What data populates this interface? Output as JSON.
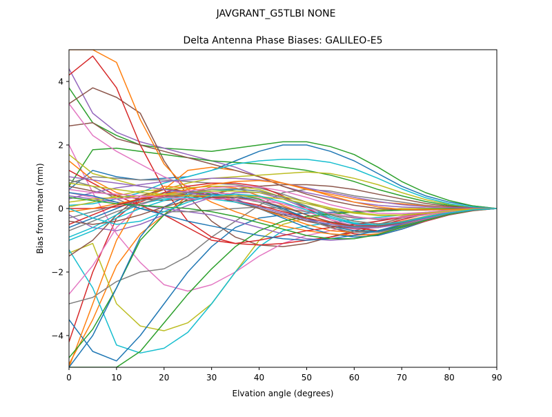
{
  "figure": {
    "suptitle": "JAVGRANT_G5TLBI NONE"
  },
  "chart_data": {
    "type": "line",
    "title": "Delta Antenna Phase Biases: GALILEO-E5",
    "xlabel": "Elvation angle (degrees)",
    "ylabel": "Bias from mean (mm)",
    "xlim": [
      0,
      90
    ],
    "ylim": [
      -5,
      5
    ],
    "xticks": [
      0,
      10,
      20,
      30,
      40,
      50,
      60,
      70,
      80,
      90
    ],
    "yticks": [
      -4,
      -2,
      0,
      2,
      4
    ],
    "grid": false,
    "legend": "none",
    "x": [
      0,
      5,
      10,
      15,
      20,
      25,
      30,
      35,
      40,
      45,
      50,
      55,
      60,
      65,
      70,
      75,
      80,
      85,
      90
    ],
    "series": [
      {
        "color": "#1f77b4",
        "values": [
          0.6,
          1.2,
          1.0,
          0.9,
          0.95,
          1.0,
          1.2,
          1.5,
          1.8,
          2.0,
          2.0,
          1.8,
          1.5,
          1.1,
          0.7,
          0.4,
          0.2,
          0.08,
          0.0
        ]
      },
      {
        "color": "#ff7f0e",
        "values": [
          -4.9,
          -3.5,
          -1.8,
          -0.8,
          -0.2,
          0.4,
          0.7,
          0.65,
          0.4,
          0.1,
          -0.2,
          -0.45,
          -0.6,
          -0.55,
          -0.4,
          -0.25,
          -0.12,
          -0.05,
          0.0
        ]
      },
      {
        "color": "#2ca02c",
        "values": [
          3.8,
          2.7,
          2.3,
          2.0,
          1.9,
          1.85,
          1.8,
          1.9,
          2.0,
          2.1,
          2.1,
          1.95,
          1.7,
          1.3,
          0.85,
          0.5,
          0.25,
          0.08,
          0.0
        ]
      },
      {
        "color": "#d62728",
        "values": [
          -4.2,
          -2.0,
          -0.3,
          0.3,
          0.4,
          0.45,
          0.5,
          0.45,
          0.3,
          0.0,
          -0.35,
          -0.6,
          -0.8,
          -0.85,
          -0.65,
          -0.4,
          -0.2,
          -0.07,
          0.0
        ]
      },
      {
        "color": "#9467bd",
        "values": [
          4.4,
          3.0,
          2.4,
          2.1,
          1.9,
          1.7,
          1.5,
          1.3,
          1.0,
          0.7,
          0.5,
          0.35,
          0.2,
          0.1,
          0.05,
          0.02,
          0.01,
          0.0,
          0.0
        ]
      },
      {
        "color": "#8c564b",
        "values": [
          3.3,
          3.8,
          3.5,
          3.0,
          1.5,
          0.4,
          -0.4,
          -0.9,
          -1.15,
          -1.2,
          -1.1,
          -0.9,
          -0.7,
          -0.5,
          -0.3,
          -0.15,
          -0.07,
          -0.02,
          0.0
        ]
      },
      {
        "color": "#e377c2",
        "values": [
          2.0,
          0.5,
          -0.8,
          -1.7,
          -2.4,
          -2.6,
          -2.4,
          -2.0,
          -1.5,
          -1.1,
          -0.85,
          -0.7,
          -0.55,
          -0.4,
          -0.25,
          -0.12,
          -0.05,
          -0.02,
          0.0
        ]
      },
      {
        "color": "#7f7f7f",
        "values": [
          -3.0,
          -2.8,
          -2.3,
          -2.0,
          -1.9,
          -1.5,
          -0.9,
          -0.4,
          0.1,
          0.5,
          0.6,
          0.55,
          0.4,
          0.3,
          0.2,
          0.1,
          0.05,
          0.02,
          0.0
        ]
      },
      {
        "color": "#bcbd22",
        "values": [
          -1.4,
          -1.1,
          -3.0,
          -3.7,
          -3.85,
          -3.6,
          -3.0,
          -2.0,
          -1.0,
          -0.5,
          -0.3,
          -0.2,
          -0.1,
          -0.05,
          0.0,
          0.0,
          0.0,
          0.0,
          0.0
        ]
      },
      {
        "color": "#17becf",
        "values": [
          -1.3,
          -2.5,
          -4.3,
          -4.55,
          -4.4,
          -3.9,
          -3.0,
          -2.0,
          -1.2,
          -0.7,
          -0.55,
          -0.45,
          -0.35,
          -0.28,
          -0.2,
          -0.12,
          -0.06,
          -0.02,
          0.0
        ]
      },
      {
        "color": "#1f77b4",
        "values": [
          -3.5,
          -4.5,
          -4.8,
          -4.0,
          -3.0,
          -2.0,
          -1.2,
          -0.6,
          -0.3,
          -0.2,
          -0.15,
          -0.12,
          -0.1,
          -0.08,
          -0.05,
          -0.03,
          -0.01,
          0.0,
          0.0
        ]
      },
      {
        "color": "#ff7f0e",
        "values": [
          1.5,
          0.9,
          0.5,
          0.3,
          0.6,
          1.2,
          1.3,
          1.2,
          1.0,
          0.8,
          0.6,
          0.45,
          0.3,
          0.2,
          0.15,
          0.08,
          0.04,
          0.01,
          0.0
        ]
      },
      {
        "color": "#2ca02c",
        "values": [
          0.7,
          1.85,
          1.9,
          1.8,
          1.7,
          1.6,
          1.5,
          1.45,
          1.4,
          1.3,
          1.2,
          1.05,
          0.85,
          0.6,
          0.4,
          0.22,
          0.1,
          0.03,
          0.0
        ]
      },
      {
        "color": "#d62728",
        "values": [
          4.2,
          4.8,
          3.8,
          2.0,
          0.6,
          -0.4,
          -0.9,
          -1.1,
          -1.15,
          -1.1,
          -1.0,
          -0.9,
          -0.75,
          -0.55,
          -0.35,
          -0.18,
          -0.08,
          -0.02,
          0.0
        ]
      },
      {
        "color": "#9467bd",
        "values": [
          -0.2,
          -0.6,
          -0.7,
          -0.5,
          -0.2,
          0.1,
          0.35,
          0.5,
          0.5,
          0.3,
          0.0,
          -0.3,
          -0.5,
          -0.55,
          -0.45,
          -0.3,
          -0.15,
          -0.05,
          0.0
        ]
      },
      {
        "color": "#8c564b",
        "values": [
          2.6,
          2.7,
          2.2,
          2.0,
          1.8,
          1.6,
          1.4,
          1.2,
          1.0,
          0.7,
          0.45,
          0.25,
          0.1,
          0.0,
          -0.05,
          -0.05,
          -0.03,
          -0.01,
          0.0
        ]
      },
      {
        "color": "#e377c2",
        "values": [
          3.3,
          2.3,
          1.8,
          1.4,
          1.0,
          0.7,
          0.4,
          0.2,
          0.0,
          -0.2,
          -0.4,
          -0.55,
          -0.65,
          -0.6,
          -0.45,
          -0.28,
          -0.13,
          -0.04,
          0.0
        ]
      },
      {
        "color": "#7f7f7f",
        "values": [
          0.8,
          1.0,
          0.95,
          0.9,
          0.9,
          0.85,
          0.8,
          0.75,
          0.65,
          0.45,
          0.2,
          -0.05,
          -0.25,
          -0.35,
          -0.3,
          -0.2,
          -0.1,
          -0.03,
          0.0
        ]
      },
      {
        "color": "#bcbd22",
        "values": [
          1.7,
          1.1,
          0.9,
          0.7,
          0.6,
          0.8,
          0.95,
          1.0,
          1.05,
          1.1,
          1.15,
          1.1,
          0.95,
          0.75,
          0.5,
          0.28,
          0.13,
          0.04,
          0.0
        ]
      },
      {
        "color": "#17becf",
        "values": [
          0.1,
          0.15,
          0.3,
          0.5,
          0.8,
          1.0,
          1.2,
          1.4,
          1.5,
          1.55,
          1.55,
          1.45,
          1.25,
          0.95,
          0.62,
          0.34,
          0.15,
          0.05,
          0.0
        ]
      },
      {
        "color": "#1f77b4",
        "values": [
          -0.6,
          -0.3,
          0.0,
          0.3,
          0.5,
          0.55,
          0.5,
          0.3,
          0.0,
          -0.3,
          -0.6,
          -0.8,
          -0.9,
          -0.85,
          -0.65,
          -0.4,
          -0.2,
          -0.06,
          0.0
        ]
      },
      {
        "color": "#ff7f0e",
        "values": [
          -5.0,
          -3.0,
          -1.0,
          0.3,
          0.7,
          0.65,
          0.5,
          0.25,
          0.0,
          -0.25,
          -0.5,
          -0.7,
          -0.75,
          -0.7,
          -0.52,
          -0.32,
          -0.15,
          -0.05,
          0.0
        ]
      },
      {
        "color": "#2ca02c",
        "values": [
          -4.7,
          -3.8,
          -2.5,
          -1.0,
          -0.2,
          0.3,
          0.5,
          0.45,
          0.3,
          0.0,
          -0.3,
          -0.55,
          -0.7,
          -0.7,
          -0.55,
          -0.35,
          -0.17,
          -0.05,
          0.0
        ]
      },
      {
        "color": "#d62728",
        "values": [
          0.0,
          0.0,
          0.05,
          0.2,
          0.5,
          0.7,
          0.8,
          0.8,
          0.7,
          0.4,
          0.0,
          -0.35,
          -0.6,
          -0.7,
          -0.6,
          -0.4,
          -0.2,
          -0.06,
          0.0
        ]
      },
      {
        "color": "#9467bd",
        "values": [
          0.4,
          0.3,
          0.2,
          0.1,
          0.0,
          -0.1,
          -0.2,
          -0.4,
          -0.6,
          -0.8,
          -0.95,
          -1.0,
          -0.95,
          -0.8,
          -0.58,
          -0.35,
          -0.17,
          -0.05,
          0.0
        ]
      },
      {
        "color": "#8c564b",
        "values": [
          0.7,
          0.55,
          0.4,
          0.3,
          0.25,
          0.3,
          0.45,
          0.6,
          0.7,
          0.75,
          0.75,
          0.7,
          0.6,
          0.45,
          0.3,
          0.16,
          0.07,
          0.02,
          0.0
        ]
      },
      {
        "color": "#e377c2",
        "values": [
          -2.7,
          -1.8,
          -0.6,
          0.1,
          0.4,
          0.5,
          0.5,
          0.45,
          0.35,
          0.15,
          -0.1,
          -0.35,
          -0.55,
          -0.6,
          -0.5,
          -0.32,
          -0.16,
          -0.05,
          0.0
        ]
      },
      {
        "color": "#7f7f7f",
        "values": [
          0.9,
          0.7,
          0.3,
          0.0,
          -0.1,
          -0.1,
          -0.05,
          0.0,
          0.05,
          0.0,
          -0.1,
          -0.2,
          -0.3,
          -0.32,
          -0.27,
          -0.18,
          -0.09,
          -0.03,
          0.0
        ]
      },
      {
        "color": "#bcbd22",
        "values": [
          0.05,
          0.2,
          0.4,
          0.55,
          0.6,
          0.65,
          0.7,
          0.7,
          0.6,
          0.35,
          0.05,
          -0.2,
          -0.4,
          -0.48,
          -0.42,
          -0.28,
          -0.14,
          -0.04,
          0.0
        ]
      },
      {
        "color": "#17becf",
        "values": [
          -1.0,
          -0.7,
          -0.3,
          0.0,
          0.25,
          0.45,
          0.55,
          0.6,
          0.55,
          0.35,
          0.05,
          -0.25,
          -0.45,
          -0.52,
          -0.45,
          -0.3,
          -0.15,
          -0.05,
          0.0
        ]
      },
      {
        "color": "#1f77b4",
        "values": [
          -5.0,
          -4.0,
          -2.5,
          -0.9,
          0.05,
          0.4,
          0.45,
          0.4,
          0.25,
          0.0,
          -0.3,
          -0.55,
          -0.7,
          -0.72,
          -0.58,
          -0.37,
          -0.18,
          -0.06,
          0.0
        ]
      },
      {
        "color": "#ff7f0e",
        "values": [
          5.0,
          5.0,
          4.6,
          2.8,
          1.4,
          0.6,
          0.2,
          -0.1,
          -0.35,
          -0.55,
          -0.7,
          -0.8,
          -0.85,
          -0.8,
          -0.6,
          -0.38,
          -0.18,
          -0.06,
          0.0
        ]
      },
      {
        "color": "#2ca02c",
        "values": [
          -5.0,
          -5.0,
          -5.0,
          -4.5,
          -3.6,
          -2.7,
          -1.9,
          -1.2,
          -0.7,
          -0.4,
          -0.25,
          -0.17,
          -0.12,
          -0.08,
          -0.05,
          -0.03,
          -0.01,
          0.0,
          0.0
        ]
      },
      {
        "color": "#d62728",
        "values": [
          1.2,
          0.8,
          0.4,
          0.1,
          -0.2,
          -0.6,
          -1.0,
          -1.1,
          -1.0,
          -0.85,
          -0.7,
          -0.6,
          -0.5,
          -0.4,
          -0.28,
          -0.16,
          -0.07,
          -0.02,
          0.0
        ]
      },
      {
        "color": "#9467bd",
        "values": [
          0.3,
          0.5,
          0.65,
          0.75,
          0.85,
          0.9,
          0.95,
          0.95,
          0.9,
          0.8,
          0.65,
          0.5,
          0.35,
          0.22,
          0.12,
          0.06,
          0.03,
          0.01,
          0.0
        ]
      },
      {
        "color": "#8c564b",
        "values": [
          -1.5,
          -1.0,
          -0.2,
          0.4,
          0.6,
          0.55,
          0.4,
          0.2,
          0.0,
          -0.2,
          -0.4,
          -0.55,
          -0.62,
          -0.6,
          -0.46,
          -0.3,
          -0.14,
          -0.04,
          0.0
        ]
      },
      {
        "color": "#e377c2",
        "values": [
          0.5,
          0.35,
          0.3,
          0.35,
          0.45,
          0.55,
          0.65,
          0.7,
          0.68,
          0.55,
          0.35,
          0.12,
          -0.05,
          -0.15,
          -0.16,
          -0.12,
          -0.06,
          -0.02,
          0.0
        ]
      },
      {
        "color": "#7f7f7f",
        "values": [
          -0.3,
          -0.1,
          0.1,
          0.25,
          0.35,
          0.4,
          0.4,
          0.35,
          0.2,
          -0.05,
          -0.35,
          -0.6,
          -0.75,
          -0.75,
          -0.6,
          -0.38,
          -0.19,
          -0.06,
          0.0
        ]
      },
      {
        "color": "#bcbd22",
        "values": [
          0.2,
          0.3,
          0.35,
          0.4,
          0.45,
          0.5,
          0.55,
          0.55,
          0.5,
          0.38,
          0.2,
          0.02,
          -0.12,
          -0.2,
          -0.2,
          -0.15,
          -0.08,
          -0.03,
          0.0
        ]
      },
      {
        "color": "#17becf",
        "values": [
          -0.9,
          -0.6,
          -0.2,
          0.15,
          0.3,
          0.35,
          0.3,
          0.2,
          0.05,
          -0.15,
          -0.35,
          -0.5,
          -0.58,
          -0.55,
          -0.42,
          -0.26,
          -0.13,
          -0.04,
          0.0
        ]
      },
      {
        "color": "#1f77b4",
        "values": [
          0.5,
          0.4,
          0.2,
          0.0,
          -0.2,
          -0.4,
          -0.55,
          -0.7,
          -0.85,
          -0.95,
          -1.0,
          -0.95,
          -0.85,
          -0.7,
          -0.5,
          -0.3,
          -0.15,
          -0.05,
          0.0
        ]
      },
      {
        "color": "#ff7f0e",
        "values": [
          -0.1,
          0.0,
          0.15,
          0.3,
          0.45,
          0.6,
          0.75,
          0.85,
          0.88,
          0.8,
          0.62,
          0.4,
          0.2,
          0.05,
          -0.03,
          -0.04,
          -0.03,
          -0.01,
          0.0
        ]
      },
      {
        "color": "#2ca02c",
        "values": [
          0.35,
          0.25,
          0.15,
          0.1,
          0.05,
          0.0,
          -0.1,
          -0.25,
          -0.45,
          -0.65,
          -0.85,
          -0.95,
          -0.95,
          -0.82,
          -0.6,
          -0.37,
          -0.18,
          -0.06,
          0.0
        ]
      },
      {
        "color": "#d62728",
        "values": [
          -0.5,
          -0.2,
          0.1,
          0.3,
          0.4,
          0.4,
          0.35,
          0.25,
          0.1,
          -0.1,
          -0.3,
          -0.45,
          -0.55,
          -0.55,
          -0.44,
          -0.28,
          -0.14,
          -0.04,
          0.0
        ]
      },
      {
        "color": "#9467bd",
        "values": [
          1.0,
          0.9,
          0.8,
          0.7,
          0.6,
          0.5,
          0.4,
          0.25,
          0.05,
          -0.15,
          -0.35,
          -0.5,
          -0.6,
          -0.6,
          -0.48,
          -0.31,
          -0.15,
          -0.05,
          0.0
        ]
      },
      {
        "color": "#8c564b",
        "values": [
          -0.4,
          -0.5,
          -0.4,
          -0.2,
          0.05,
          0.25,
          0.35,
          0.35,
          0.25,
          0.05,
          -0.2,
          -0.42,
          -0.55,
          -0.56,
          -0.45,
          -0.29,
          -0.14,
          -0.04,
          0.0
        ]
      },
      {
        "color": "#e377c2",
        "values": [
          0.6,
          0.5,
          0.45,
          0.4,
          0.35,
          0.3,
          0.3,
          0.3,
          0.25,
          0.15,
          0.0,
          -0.15,
          -0.27,
          -0.32,
          -0.28,
          -0.19,
          -0.1,
          -0.03,
          0.0
        ]
      },
      {
        "color": "#7f7f7f",
        "values": [
          -0.7,
          -0.4,
          -0.1,
          0.15,
          0.35,
          0.5,
          0.6,
          0.62,
          0.55,
          0.35,
          0.08,
          -0.2,
          -0.4,
          -0.48,
          -0.42,
          -0.28,
          -0.14,
          -0.04,
          0.0
        ]
      },
      {
        "color": "#bcbd22",
        "values": [
          0.8,
          0.7,
          0.6,
          0.5,
          0.45,
          0.4,
          0.4,
          0.4,
          0.38,
          0.3,
          0.15,
          -0.02,
          -0.15,
          -0.22,
          -0.21,
          -0.15,
          -0.08,
          -0.02,
          0.0
        ]
      },
      {
        "color": "#17becf",
        "values": [
          0.0,
          -0.3,
          -0.5,
          -0.4,
          -0.1,
          0.2,
          0.4,
          0.45,
          0.4,
          0.2,
          -0.05,
          -0.3,
          -0.48,
          -0.52,
          -0.43,
          -0.28,
          -0.14,
          -0.04,
          0.0
        ]
      }
    ]
  }
}
